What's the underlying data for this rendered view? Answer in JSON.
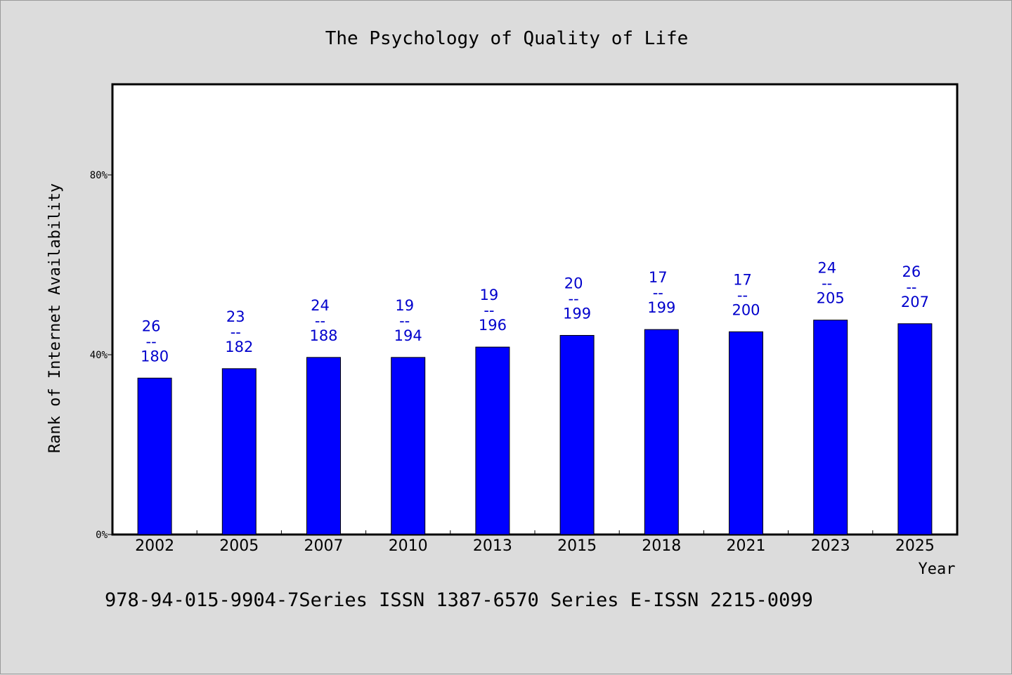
{
  "chart_data": {
    "type": "bar",
    "title": "The Psychology of Quality of Life",
    "xlabel": "Year",
    "ylabel": "Rank of Internet Availability",
    "categories": [
      "2002",
      "2005",
      "2007",
      "2010",
      "2013",
      "2015",
      "2018",
      "2021",
      "2023",
      "2025"
    ],
    "values": [
      34.8,
      36.9,
      39.4,
      39.4,
      41.7,
      44.3,
      45.6,
      45.1,
      47.7,
      46.9
    ],
    "rank_labels": [
      {
        "rank": "26",
        "sep": "--",
        "total": "180"
      },
      {
        "rank": "23",
        "sep": "--",
        "total": "182"
      },
      {
        "rank": "24",
        "sep": "--",
        "total": "188"
      },
      {
        "rank": "19",
        "sep": "--",
        "total": "194"
      },
      {
        "rank": "19",
        "sep": "--",
        "total": "196"
      },
      {
        "rank": "20",
        "sep": "--",
        "total": "199"
      },
      {
        "rank": "17",
        "sep": "--",
        "total": "199"
      },
      {
        "rank": "17",
        "sep": "--",
        "total": "200"
      },
      {
        "rank": "24",
        "sep": "--",
        "total": "205"
      },
      {
        "rank": "26",
        "sep": "--",
        "total": "207"
      }
    ],
    "yticks": [
      0,
      40,
      80
    ],
    "ytick_labels": [
      "0%",
      "40%",
      "80%"
    ],
    "ylim": [
      0,
      100
    ],
    "grid": false,
    "bar_color": "#0000ff",
    "label_color": "#0000cc"
  },
  "footer": "978-94-015-9904-7Series ISSN 1387-6570 Series E-ISSN 2215-0099"
}
